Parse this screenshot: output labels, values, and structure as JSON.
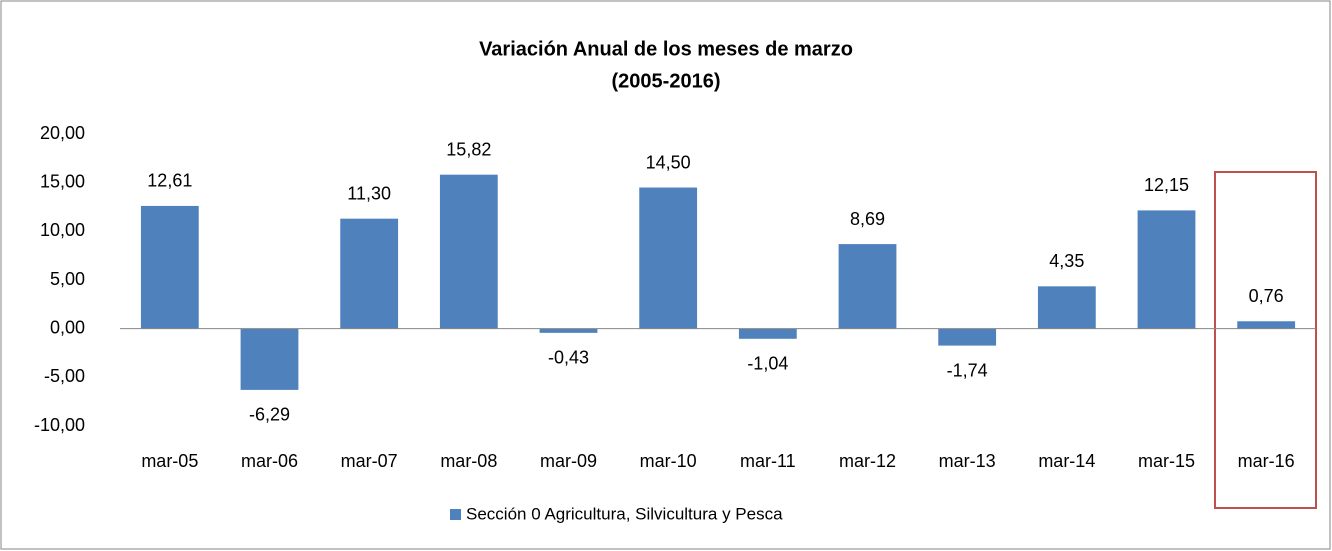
{
  "chart_data": {
    "type": "bar",
    "title": "Variación Anual de los meses de marzo",
    "subtitle": "(2005-2016)",
    "categories": [
      "mar-05",
      "mar-06",
      "mar-07",
      "mar-08",
      "mar-09",
      "mar-10",
      "mar-11",
      "mar-12",
      "mar-13",
      "mar-14",
      "mar-15",
      "mar-16"
    ],
    "series": [
      {
        "name": "Sección 0 Agricultura, Silvicultura y Pesca",
        "color": "#4f81bd",
        "values": [
          12.61,
          -6.29,
          11.3,
          15.82,
          -0.43,
          14.5,
          -1.04,
          8.69,
          -1.74,
          4.35,
          12.15,
          0.76
        ],
        "value_labels": [
          "12,61",
          "-6,29",
          "11,30",
          "15,82",
          "-0,43",
          "14,50",
          "-1,04",
          "8,69",
          "-1,74",
          "4,35",
          "12,15",
          "0,76"
        ]
      }
    ],
    "ylim": [
      -10,
      20
    ],
    "yticks": [
      {
        "value": -10,
        "label": "-10,00"
      },
      {
        "value": -5,
        "label": "-5,00"
      },
      {
        "value": 0,
        "label": "0,00"
      },
      {
        "value": 5,
        "label": "5,00"
      },
      {
        "value": 10,
        "label": "10,00"
      },
      {
        "value": 15,
        "label": "15,00"
      },
      {
        "value": 20,
        "label": "20,00"
      }
    ],
    "grid": false,
    "legend": "bottom"
  }
}
